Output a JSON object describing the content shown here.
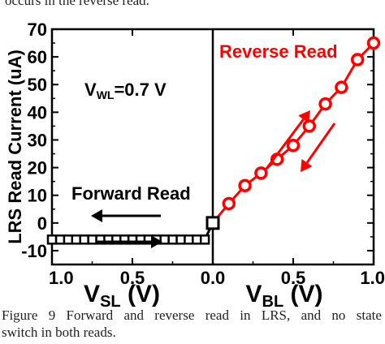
{
  "top_caption": "occurs in the reverse read.",
  "caption": {
    "line1": [
      "Figure",
      "9",
      "Forward",
      "and",
      "reverse",
      "read",
      "in",
      "LRS,",
      "and",
      "no",
      "state"
    ],
    "line2": "switch in both reads."
  },
  "chart_data": {
    "type": "line",
    "ylabel": "LRS Read Current (uA)",
    "xlabel_left": {
      "main": "V",
      "sub": "SL",
      "unit": " (V)"
    },
    "xlabel_right": {
      "main": "V",
      "sub": "BL",
      "unit": " (V)"
    },
    "annotation": {
      "main": "V",
      "sub": "WL",
      "rest": "=0.7 V"
    },
    "ylim": [
      -15,
      70
    ],
    "y_ticks": [
      "-10",
      "0",
      "10",
      "20",
      "30",
      "40",
      "50",
      "60",
      "70"
    ],
    "x_ticks": [
      "1.0",
      "0.5",
      "0.0",
      "0.5",
      "1.0"
    ],
    "series": [
      {
        "name": "Forward Read",
        "color": "#000000",
        "marker": "square",
        "x": [
          0.0,
          -0.05,
          -0.1,
          -0.15,
          -0.2,
          -0.25,
          -0.3,
          -0.35,
          -0.4,
          -0.45,
          -0.5,
          -0.55,
          -0.6,
          -0.65,
          -0.7,
          -0.75,
          -0.8,
          -0.85,
          -0.9,
          -0.95,
          -1.0
        ],
        "y": [
          0,
          -6,
          -6,
          -6,
          -6,
          -6,
          -6,
          -6,
          -6,
          -6,
          -6,
          -6,
          -6,
          -6,
          -6,
          -6,
          -6,
          -6,
          -6,
          -6,
          -6
        ]
      },
      {
        "name": "Reverse Read",
        "color": "#ff0000",
        "marker": "circle",
        "x": [
          0.0,
          0.1,
          0.2,
          0.3,
          0.4,
          0.5,
          0.6,
          0.7,
          0.8,
          0.9,
          1.0
        ],
        "y": [
          0,
          7,
          13.5,
          18,
          23,
          28,
          35,
          43,
          49,
          59,
          65
        ]
      }
    ]
  }
}
